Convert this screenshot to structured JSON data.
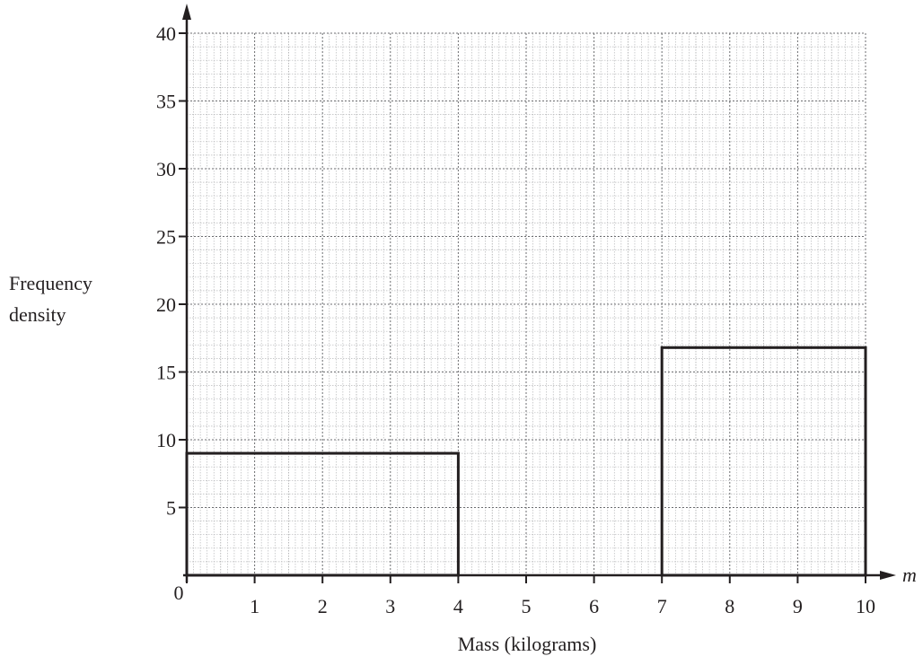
{
  "chart_data": {
    "type": "bar",
    "title": "",
    "xlabel": "Mass (kilograms)",
    "ylabel_lines": [
      "Frequency",
      "density"
    ],
    "x_variable": "m",
    "xlim": [
      0,
      10
    ],
    "ylim": [
      0,
      40
    ],
    "x_ticks": [
      "0",
      "1",
      "2",
      "3",
      "4",
      "5",
      "6",
      "7",
      "8",
      "9",
      "10"
    ],
    "y_ticks": [
      "5",
      "10",
      "15",
      "20",
      "25",
      "30",
      "35",
      "40"
    ],
    "grid": true,
    "bars": [
      {
        "x_start": 0,
        "x_end": 4,
        "value": 9
      },
      {
        "x_start": 7,
        "x_end": 10,
        "value": 16.8
      }
    ]
  }
}
